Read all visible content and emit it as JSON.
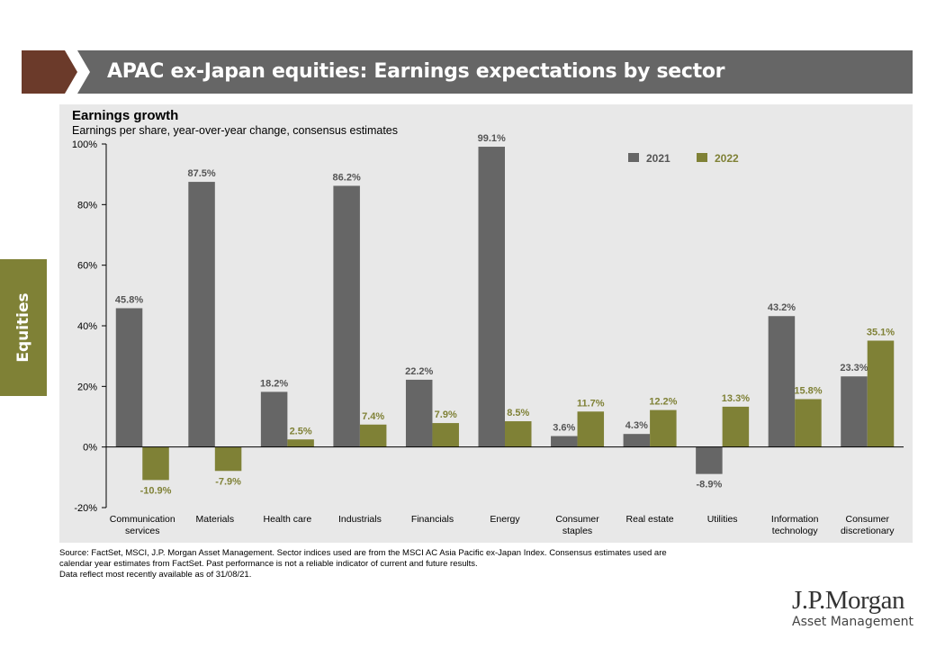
{
  "header": {
    "title": "APAC ex-Japan equities: Earnings expectations by sector"
  },
  "side_tab": {
    "label": "Equities"
  },
  "chart_data": {
    "type": "bar",
    "title": "Earnings growth",
    "subtitle": "Earnings per share, year-over-year  change, consensus estimates",
    "categories": [
      [
        "Communication",
        "services"
      ],
      [
        "Materials"
      ],
      [
        "Health care"
      ],
      [
        "Industrials"
      ],
      [
        "Financials"
      ],
      [
        "Energy"
      ],
      [
        "Consumer",
        "staples"
      ],
      [
        "Real estate"
      ],
      [
        "Utilities"
      ],
      [
        "Information",
        "technology"
      ],
      [
        "Consumer",
        "discretionary"
      ]
    ],
    "series": [
      {
        "name": "2021",
        "color": "#666666",
        "label_color": "#555555",
        "values": [
          45.8,
          87.5,
          18.2,
          86.2,
          22.2,
          99.1,
          3.6,
          4.3,
          -8.9,
          43.2,
          23.3
        ]
      },
      {
        "name": "2022",
        "color": "#7f8136",
        "label_color": "#7f8136",
        "values": [
          -10.9,
          -7.9,
          2.5,
          7.4,
          7.9,
          8.5,
          11.7,
          12.2,
          13.3,
          15.8,
          35.1
        ]
      }
    ],
    "ylim": [
      -20,
      100
    ],
    "yticks": [
      -20,
      0,
      20,
      40,
      60,
      80,
      100
    ],
    "ytick_labels": [
      "-20%",
      "0%",
      "20%",
      "40%",
      "60%",
      "80%",
      "100%"
    ],
    "legend_position": "top-right",
    "grid": false
  },
  "source": {
    "line1": "Source: FactSet, MSCI,  J.P. Morgan Asset Management. Sector indices used are from the MSCI  AC Asia Pacific ex-Japan Index. Consensus estimates used are",
    "line2": "calendar year estimates from FactSet. Past performance is not a reliable indicator of current and future results.",
    "line3": "Data  reflect most recently available as of 31/08/21."
  },
  "logo": {
    "main": "J.P.Morgan",
    "sub": "Asset Management"
  },
  "colors": {
    "header_chevron": "#6b3a2a",
    "title_bar": "#666666",
    "side_tab": "#7f8136",
    "panel": "#e8e8e8"
  }
}
